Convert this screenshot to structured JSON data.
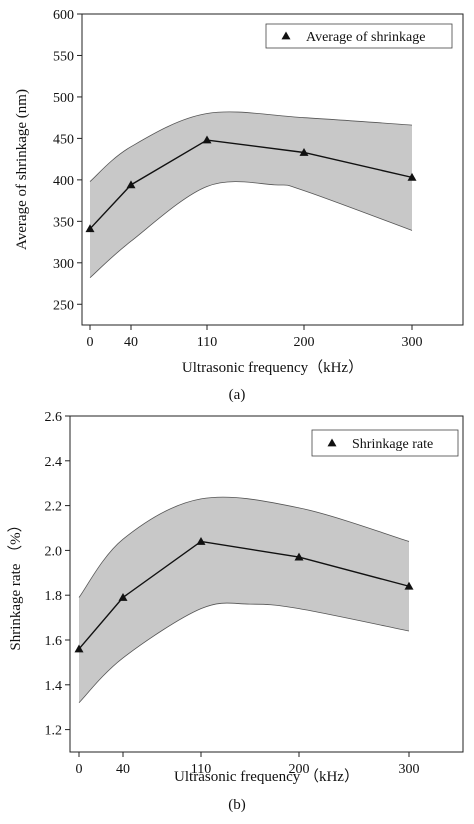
{
  "chart_data": [
    {
      "type": "line",
      "panel_label": "(a)",
      "xlabel": "Ultrasonic frequency（kHz）",
      "ylabel": "Average of shrinkage (nm)",
      "categories": [
        "0",
        "40",
        "110",
        "200",
        "300"
      ],
      "yticks": [
        "250",
        "300",
        "350",
        "400",
        "450",
        "500",
        "550",
        "600"
      ],
      "ylim": [
        225,
        600
      ],
      "series": [
        {
          "name": "Average of shrinkage",
          "values": [
            341,
            394,
            448,
            433,
            403
          ]
        }
      ],
      "band": {
        "upper": [
          [
            0,
            398
          ],
          [
            1,
            440
          ],
          [
            2,
            480
          ],
          [
            3,
            475
          ],
          [
            4,
            466
          ]
        ],
        "lower": [
          [
            0,
            282
          ],
          [
            1,
            326
          ],
          [
            2,
            392
          ],
          [
            2.7,
            394
          ],
          [
            3,
            387
          ],
          [
            4,
            339
          ]
        ]
      },
      "legend": {
        "position": "top-right",
        "marker": "triangle"
      },
      "grid": false
    },
    {
      "type": "line",
      "panel_label": "(b)",
      "xlabel": "Ultrasonic frequency （kHz）",
      "ylabel": "Shrinkage rate （%）",
      "categories": [
        "0",
        "40",
        "110",
        "200",
        "300"
      ],
      "yticks": [
        "1.2",
        "1.4",
        "1.6",
        "1.8",
        "2.0",
        "2.2",
        "2.4",
        "2.6"
      ],
      "ylim": [
        1.1,
        2.6
      ],
      "series": [
        {
          "name": "Shrinkage rate",
          "values": [
            1.56,
            1.79,
            2.04,
            1.97,
            1.84
          ]
        }
      ],
      "band": {
        "upper": [
          [
            0,
            1.79
          ],
          [
            1,
            2.05
          ],
          [
            2,
            2.23
          ],
          [
            3,
            2.19
          ],
          [
            4,
            2.04
          ]
        ],
        "lower": [
          [
            0,
            1.32
          ],
          [
            1,
            1.52
          ],
          [
            2,
            1.74
          ],
          [
            2.5,
            1.76
          ],
          [
            3,
            1.74
          ],
          [
            4,
            1.64
          ]
        ]
      },
      "legend": {
        "position": "top-right",
        "marker": "triangle"
      },
      "grid": false
    }
  ]
}
